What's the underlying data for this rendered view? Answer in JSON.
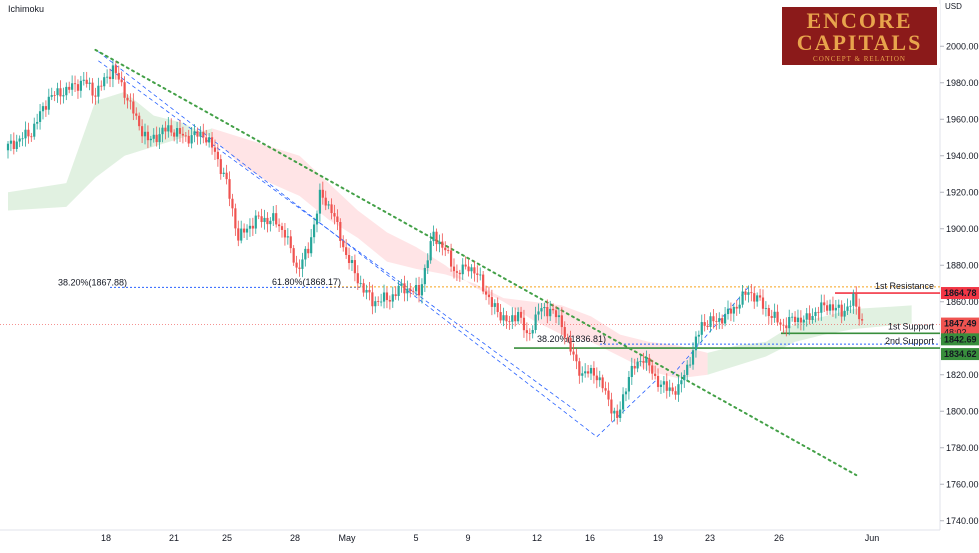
{
  "indicator_label": "Ichimoku",
  "currency": "USD",
  "logo": {
    "line1": "ENCORE",
    "line2": "CAPITALS",
    "tagline": "CONCEPT & RELATION"
  },
  "colors": {
    "bull": "#26a69a",
    "bear": "#ef5350",
    "cloud_bull": "#c8e6c9",
    "cloud_bear": "#ffcdd2",
    "fib_blue": "#2962ff",
    "fib_orange": "#f7a21b",
    "trend": "#43a047",
    "resistance": "#f23645",
    "support": "#388e3c"
  },
  "chart_data": {
    "type": "candlestick",
    "y_axis": {
      "min": 1730,
      "max": 2010,
      "ticks": [
        2000,
        1980,
        1960,
        1940,
        1920,
        1900,
        1880,
        1860,
        1840,
        1820,
        1800,
        1780,
        1760,
        1740
      ]
    },
    "x_axis": {
      "ticks": [
        "18",
        "21",
        "25",
        "28",
        "May",
        "5",
        "9",
        "12",
        "16",
        "19",
        "23",
        "26",
        "Jun"
      ]
    },
    "close_path": [
      [
        0,
        1945
      ],
      [
        8,
        1953
      ],
      [
        14,
        1972
      ],
      [
        20,
        1976
      ],
      [
        26,
        1981
      ],
      [
        30,
        1974
      ],
      [
        36,
        1988
      ],
      [
        40,
        1975
      ],
      [
        44,
        1960
      ],
      [
        48,
        1948
      ],
      [
        55,
        1955
      ],
      [
        61,
        1950
      ],
      [
        67,
        1952
      ],
      [
        71,
        1942
      ],
      [
        75,
        1925
      ],
      [
        79,
        1895
      ],
      [
        85,
        1905
      ],
      [
        91,
        1905
      ],
      [
        95,
        1898
      ],
      [
        99,
        1878
      ],
      [
        103,
        1888
      ],
      [
        107,
        1918
      ],
      [
        111,
        1911
      ],
      [
        115,
        1890
      ],
      [
        120,
        1872
      ],
      [
        125,
        1860
      ],
      [
        131,
        1862
      ],
      [
        135,
        1868
      ],
      [
        141,
        1865
      ],
      [
        146,
        1897
      ],
      [
        150,
        1888
      ],
      [
        154,
        1875
      ],
      [
        158,
        1880
      ],
      [
        162,
        1872
      ],
      [
        166,
        1858
      ],
      [
        172,
        1848
      ],
      [
        175,
        1855
      ],
      [
        178,
        1840
      ],
      [
        182,
        1855
      ],
      [
        186,
        1856
      ],
      [
        190,
        1848
      ],
      [
        193,
        1833
      ],
      [
        197,
        1820
      ],
      [
        201,
        1822
      ],
      [
        205,
        1810
      ],
      [
        209,
        1795
      ],
      [
        213,
        1820
      ],
      [
        218,
        1830
      ],
      [
        222,
        1818
      ],
      [
        226,
        1812
      ],
      [
        230,
        1812
      ],
      [
        235,
        1833
      ],
      [
        238,
        1848
      ],
      [
        242,
        1849
      ],
      [
        246,
        1852
      ],
      [
        250,
        1858
      ],
      [
        254,
        1866
      ],
      [
        258,
        1860
      ],
      [
        262,
        1852
      ],
      [
        266,
        1847
      ],
      [
        270,
        1851
      ],
      [
        274,
        1850
      ],
      [
        278,
        1856
      ],
      [
        282,
        1858
      ],
      [
        286,
        1854
      ],
      [
        290,
        1861
      ],
      [
        293,
        1849
      ]
    ],
    "cloud": {
      "upper": [
        [
          0,
          1920
        ],
        [
          20,
          1925
        ],
        [
          30,
          1970
        ],
        [
          40,
          1975
        ],
        [
          50,
          1962
        ],
        [
          60,
          1958
        ],
        [
          70,
          1950
        ],
        [
          80,
          1935
        ],
        [
          90,
          1925
        ],
        [
          100,
          1918
        ],
        [
          110,
          1905
        ],
        [
          120,
          1895
        ],
        [
          130,
          1882
        ],
        [
          140,
          1878
        ],
        [
          150,
          1875
        ],
        [
          160,
          1870
        ],
        [
          170,
          1862
        ],
        [
          180,
          1860
        ],
        [
          190,
          1858
        ],
        [
          200,
          1852
        ],
        [
          210,
          1842
        ],
        [
          220,
          1838
        ],
        [
          230,
          1836
        ],
        [
          240,
          1832
        ],
        [
          250,
          1836
        ],
        [
          260,
          1838
        ],
        [
          270,
          1848
        ],
        [
          280,
          1852
        ],
        [
          290,
          1856
        ],
        [
          310,
          1858
        ]
      ],
      "lower": [
        [
          0,
          1910
        ],
        [
          20,
          1912
        ],
        [
          30,
          1928
        ],
        [
          40,
          1940
        ],
        [
          50,
          1945
        ],
        [
          60,
          1950
        ],
        [
          70,
          1955
        ],
        [
          80,
          1950
        ],
        [
          90,
          1945
        ],
        [
          100,
          1940
        ],
        [
          110,
          1925
        ],
        [
          120,
          1910
        ],
        [
          130,
          1898
        ],
        [
          140,
          1890
        ],
        [
          150,
          1880
        ],
        [
          160,
          1868
        ],
        [
          170,
          1860
        ],
        [
          180,
          1850
        ],
        [
          190,
          1842
        ],
        [
          200,
          1838
        ],
        [
          210,
          1830
        ],
        [
          220,
          1822
        ],
        [
          230,
          1818
        ],
        [
          240,
          1820
        ],
        [
          250,
          1825
        ],
        [
          260,
          1830
        ],
        [
          270,
          1838
        ],
        [
          280,
          1842
        ],
        [
          290,
          1845
        ],
        [
          310,
          1848
        ]
      ]
    },
    "fib_blue_level": {
      "label": "38.20%(1867.88)",
      "value": 1867.88
    },
    "fib_orange_level": {
      "label": "61.80%(1868.17)",
      "value": 1868.17
    },
    "fib_blue_level_2": {
      "label": "38.20%(1836.81)",
      "value": 1836.81
    },
    "trendline": {
      "start": [
        30,
        1998
      ],
      "end": [
        291,
        1765
      ]
    },
    "levels": [
      {
        "label": "1st Resistance",
        "price_label": "1864.78",
        "value": 1864.78,
        "type": "resistance"
      },
      {
        "label": "1st Support",
        "price_label": "1842.69",
        "value": 1842.69,
        "type": "support"
      },
      {
        "label": "2nd Support",
        "price_label": "1834.62",
        "value": 1834.62,
        "type": "support"
      }
    ],
    "current_price": {
      "label": "1847.49",
      "value": 1847.49,
      "countdown": "48:02"
    }
  }
}
